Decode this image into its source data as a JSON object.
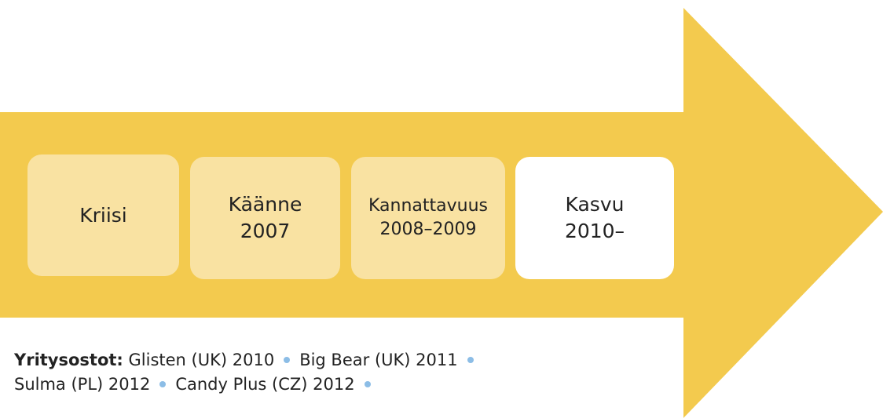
{
  "stages": [
    {
      "label": "Kriisi"
    },
    {
      "label": "Käänne",
      "period": "2007"
    },
    {
      "label": "Kannattavuus",
      "period": "2008–2009"
    },
    {
      "label": "Kasvu",
      "period": "2010–"
    }
  ],
  "acquisitions": {
    "title": "Yritysostot:",
    "items": [
      "Glisten (UK) 2010",
      "Big Bear (UK) 2011",
      "Sulma (PL) 2012",
      "Candy Plus (CZ) 2012"
    ]
  }
}
